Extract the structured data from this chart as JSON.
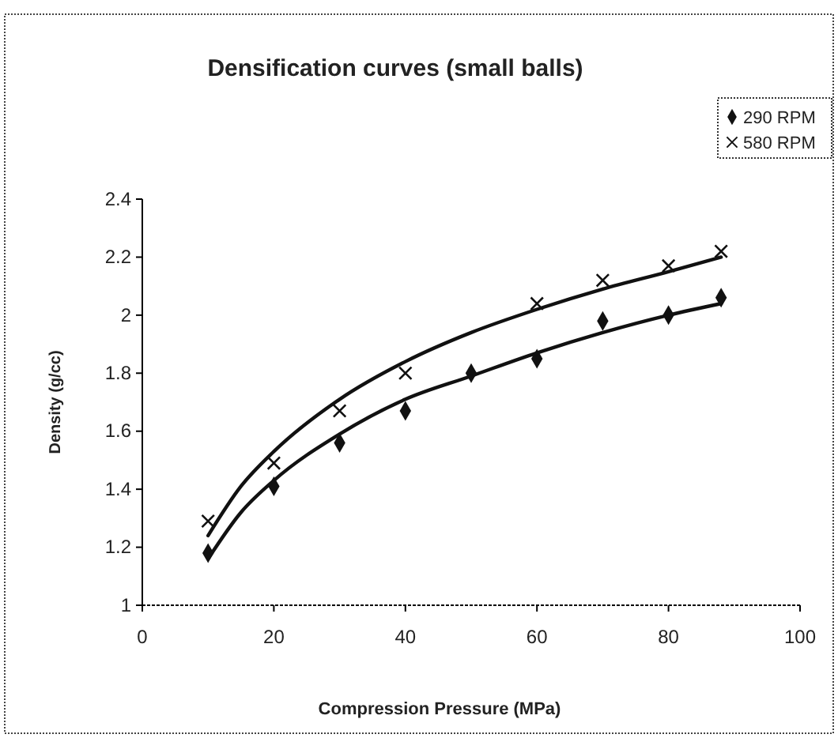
{
  "chart_data": {
    "type": "scatter",
    "title": "Densification curves (small balls)",
    "xlabel": "Compression Pressure (MPa)",
    "ylabel": "Density (g/cc)",
    "xlim": [
      0,
      100
    ],
    "xticks": [
      0,
      20,
      40,
      60,
      80,
      100
    ],
    "ylim": [
      1,
      2.4
    ],
    "yticks": [
      1,
      1.2,
      1.4,
      1.6,
      1.8,
      2,
      2.2,
      2.4
    ],
    "legend": "top right",
    "grid": false,
    "series": [
      {
        "name": "290 RPM",
        "color": "#111111",
        "marker": "diamond",
        "x": [
          10,
          20,
          30,
          40,
          50,
          60,
          70,
          80,
          88
        ],
        "values": [
          1.18,
          1.41,
          1.56,
          1.67,
          1.8,
          1.85,
          1.98,
          2.0,
          2.06
        ]
      },
      {
        "name": "580 RPM",
        "color": "#111111",
        "marker": "cross",
        "x": [
          10,
          20,
          30,
          40,
          60,
          70,
          80,
          88
        ],
        "values": [
          1.29,
          1.49,
          1.67,
          1.8,
          2.04,
          2.12,
          2.17,
          2.22
        ]
      },
      {
        "type": "line",
        "color": "#111111",
        "marker": "none",
        "line_style": "solid",
        "x": [
          10,
          15,
          20,
          30,
          40,
          50,
          60,
          70,
          80,
          88
        ],
        "values": [
          1.16,
          1.32,
          1.43,
          1.59,
          1.71,
          1.79,
          1.87,
          1.94,
          2.0,
          2.04
        ]
      },
      {
        "type": "line",
        "color": "#111111",
        "marker": "none",
        "line_style": "solid",
        "x": [
          10,
          15,
          20,
          30,
          40,
          50,
          60,
          70,
          80,
          88
        ],
        "values": [
          1.24,
          1.41,
          1.53,
          1.71,
          1.84,
          1.94,
          2.02,
          2.09,
          2.15,
          2.2
        ]
      }
    ]
  }
}
